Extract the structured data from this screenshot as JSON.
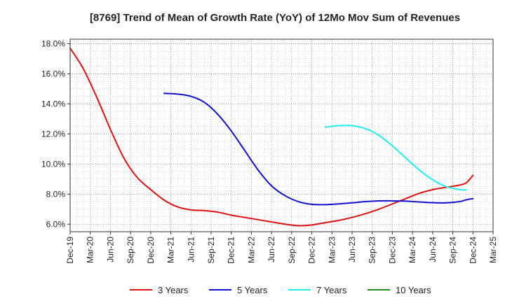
{
  "chart_data": {
    "type": "line",
    "title": "[8769]  Trend of Mean of Growth Rate (YoY) of 12Mo Mov Sum of Revenues",
    "xlabel": "",
    "ylabel": "",
    "ylim": [
      5.5,
      18.3
    ],
    "yticks": [
      6.0,
      8.0,
      10.0,
      12.0,
      14.0,
      16.0,
      18.0
    ],
    "ytick_labels": [
      "6.0%",
      "8.0%",
      "10.0%",
      "12.0%",
      "14.0%",
      "16.0%",
      "18.0%"
    ],
    "xlim": [
      0,
      63
    ],
    "xticks": [
      0,
      3,
      6,
      9,
      12,
      15,
      18,
      21,
      24,
      27,
      30,
      33,
      36,
      39,
      42,
      45,
      48,
      51,
      54,
      57,
      60,
      63
    ],
    "xtick_labels": [
      "Dec-19",
      "Mar-20",
      "Jun-20",
      "Sep-20",
      "Dec-20",
      "Mar-21",
      "Jun-21",
      "Sep-21",
      "Dec-21",
      "Mar-22",
      "Jun-22",
      "Sep-22",
      "Dec-22",
      "Mar-23",
      "Jun-23",
      "Sep-23",
      "Dec-23",
      "Mar-24",
      "Jun-24",
      "Sep-24",
      "Dec-24",
      "Mar-25"
    ],
    "grid": true,
    "legend_position": "bottom",
    "series": [
      {
        "name": "3 Years",
        "color": "#dd1111",
        "points": [
          [
            0,
            17.7
          ],
          [
            2,
            16.3
          ],
          [
            4,
            14.4
          ],
          [
            6,
            12.3
          ],
          [
            8,
            10.4
          ],
          [
            10,
            9.1
          ],
          [
            12,
            8.3
          ],
          [
            14,
            7.6
          ],
          [
            16,
            7.15
          ],
          [
            18,
            6.95
          ],
          [
            20,
            6.9
          ],
          [
            22,
            6.8
          ],
          [
            24,
            6.6
          ],
          [
            26,
            6.45
          ],
          [
            28,
            6.3
          ],
          [
            30,
            6.15
          ],
          [
            32,
            6.0
          ],
          [
            34,
            5.9
          ],
          [
            36,
            5.95
          ],
          [
            38,
            6.1
          ],
          [
            40,
            6.25
          ],
          [
            42,
            6.45
          ],
          [
            44,
            6.7
          ],
          [
            46,
            7.0
          ],
          [
            48,
            7.35
          ],
          [
            50,
            7.7
          ],
          [
            52,
            8.05
          ],
          [
            54,
            8.3
          ],
          [
            56,
            8.45
          ],
          [
            58,
            8.6
          ],
          [
            59,
            8.75
          ],
          [
            60,
            9.25
          ]
        ]
      },
      {
        "name": "5 Years",
        "color": "#1111cc",
        "points": [
          [
            14,
            14.7
          ],
          [
            16,
            14.65
          ],
          [
            18,
            14.5
          ],
          [
            20,
            14.1
          ],
          [
            22,
            13.3
          ],
          [
            24,
            12.2
          ],
          [
            26,
            10.9
          ],
          [
            28,
            9.6
          ],
          [
            30,
            8.55
          ],
          [
            32,
            7.9
          ],
          [
            34,
            7.5
          ],
          [
            36,
            7.32
          ],
          [
            38,
            7.3
          ],
          [
            40,
            7.35
          ],
          [
            42,
            7.42
          ],
          [
            44,
            7.5
          ],
          [
            46,
            7.55
          ],
          [
            48,
            7.55
          ],
          [
            50,
            7.53
          ],
          [
            52,
            7.48
          ],
          [
            54,
            7.43
          ],
          [
            56,
            7.42
          ],
          [
            58,
            7.5
          ],
          [
            59,
            7.62
          ],
          [
            60,
            7.7
          ]
        ]
      },
      {
        "name": "7 Years",
        "color": "#22eeee",
        "points": [
          [
            38,
            12.45
          ],
          [
            40,
            12.55
          ],
          [
            42,
            12.55
          ],
          [
            44,
            12.35
          ],
          [
            46,
            11.9
          ],
          [
            48,
            11.2
          ],
          [
            50,
            10.4
          ],
          [
            52,
            9.6
          ],
          [
            54,
            8.95
          ],
          [
            56,
            8.5
          ],
          [
            58,
            8.3
          ],
          [
            59,
            8.28
          ]
        ]
      },
      {
        "name": "10 Years",
        "color": "#228822",
        "points": []
      }
    ]
  }
}
